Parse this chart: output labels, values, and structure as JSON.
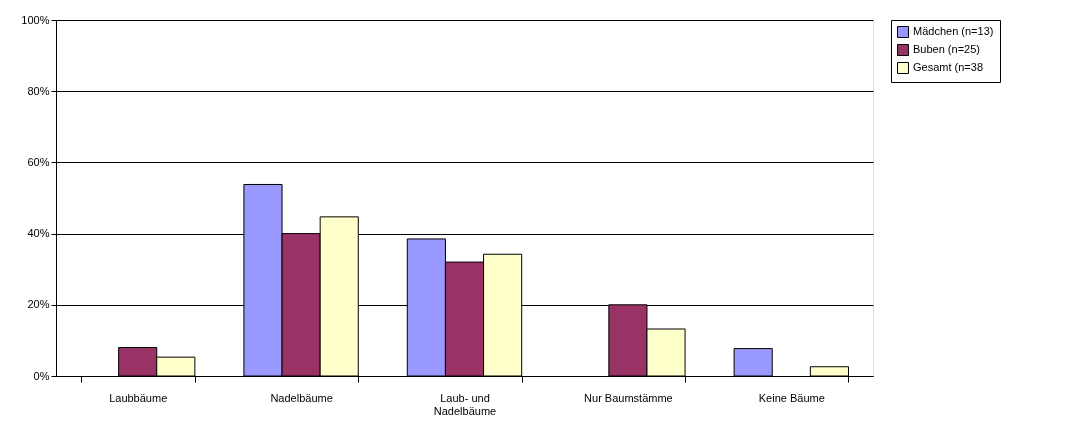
{
  "chart_data": {
    "type": "bar",
    "categories": [
      "Laubbäume",
      "Nadelbäume",
      "Laub- und Nadelbäume",
      "Nur Baumstämme",
      "Keine Bäume"
    ],
    "series": [
      {
        "name": "Mädchen (n=13)",
        "color": "#9999ff",
        "values": [
          0,
          53.8,
          38.5,
          0,
          7.7
        ]
      },
      {
        "name": "Buben (n=25)",
        "color": "#993366",
        "values": [
          8,
          40,
          32,
          20,
          0
        ]
      },
      {
        "name": "Gesamt (n=38",
        "color": "#ffffcc",
        "values": [
          5.3,
          44.7,
          34.2,
          13.2,
          2.6
        ]
      }
    ],
    "ylim": [
      0,
      100
    ],
    "yticks": [
      {
        "value": 0,
        "label": "0%"
      },
      {
        "value": 20,
        "label": "20%"
      },
      {
        "value": 40,
        "label": "40%"
      },
      {
        "value": 60,
        "label": "60%"
      },
      {
        "value": 80,
        "label": "80%"
      },
      {
        "value": 100,
        "label": "100%"
      }
    ],
    "grid": "y",
    "legend": "right"
  }
}
